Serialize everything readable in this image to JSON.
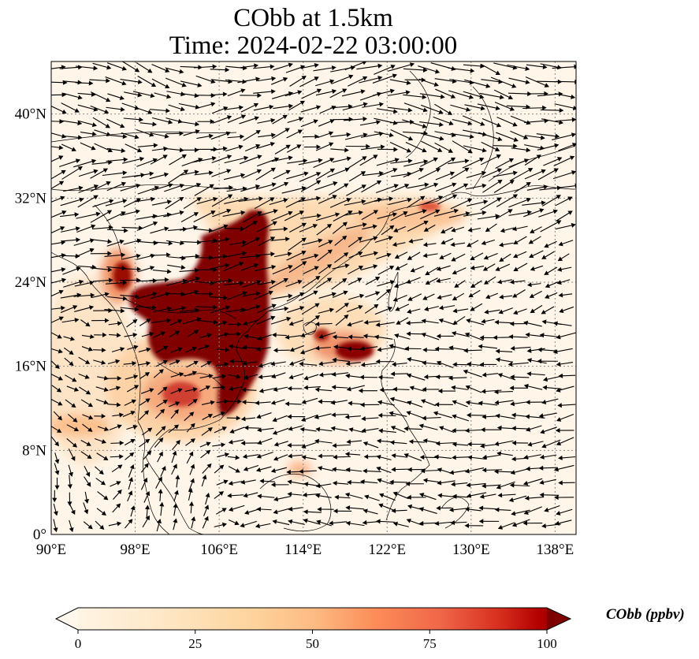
{
  "title": {
    "line1": "CObb at 1.5km",
    "line2": "Time: 2024-02-22 03:00:00"
  },
  "map": {
    "lon_range": [
      90,
      140
    ],
    "lat_range": [
      0,
      45
    ],
    "lon_ticks": [
      "90°E",
      "98°E",
      "106°E",
      "114°E",
      "122°E",
      "130°E",
      "138°E"
    ],
    "lon_tick_values": [
      90,
      98,
      106,
      114,
      122,
      130,
      138
    ],
    "lat_ticks": [
      "0°",
      "8°N",
      "16°N",
      "24°N",
      "32°N",
      "40°N"
    ],
    "lat_tick_values": [
      0,
      8,
      16,
      24,
      32,
      40
    ],
    "gridlines": true,
    "colormap": "OrRd",
    "colors": {
      "low": "#fff7ec",
      "mid": "#fdd49e",
      "high": "#d7301f",
      "max": "#7f0000",
      "coastline": "#000000",
      "grid": "#808080"
    }
  },
  "colorbar": {
    "label": "CObb (ppbv)",
    "ticks": [
      "0",
      "25",
      "50",
      "75",
      "100"
    ],
    "tick_values": [
      0,
      25,
      50,
      75,
      100
    ],
    "range": [
      0,
      100
    ],
    "extend": "both"
  }
}
